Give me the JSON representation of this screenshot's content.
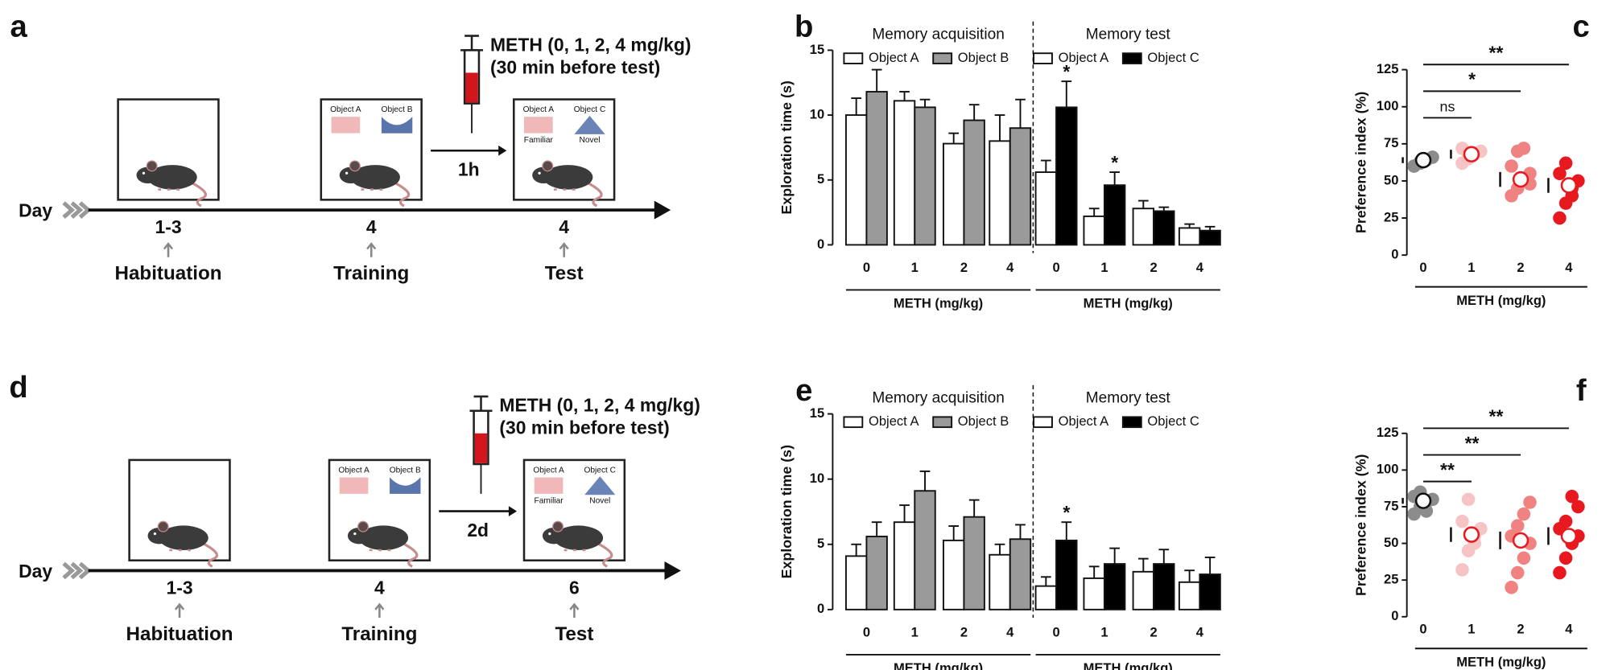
{
  "diagrams": [
    {
      "label": "a",
      "day_label": "Day",
      "days": [
        "1-3",
        "4",
        "4"
      ],
      "stages": [
        "Habituation",
        "Training",
        "Test"
      ],
      "injection": [
        "METH (0, 1, 2, 4 mg/kg)",
        "(30 min before test)"
      ],
      "interval": "1h",
      "training_objects": [
        "Object A",
        "Object B"
      ],
      "test_objects": [
        "Object A",
        "Object C"
      ],
      "test_notes": [
        "Familiar",
        "Novel"
      ]
    },
    {
      "label": "d",
      "day_label": "Day",
      "days": [
        "1-3",
        "4",
        "6"
      ],
      "stages": [
        "Habituation",
        "Training",
        "Test"
      ],
      "injection": [
        "METH (0, 1, 2, 4 mg/kg)",
        "(30 min before test)"
      ],
      "interval": "2d",
      "training_objects": [
        "Object A",
        "Object B"
      ],
      "test_objects": [
        "Object A",
        "Object C"
      ],
      "test_notes": [
        "Familiar",
        "Novel"
      ]
    }
  ],
  "chart_data": [
    {
      "type": "grouped_bar",
      "label": "b",
      "ylabel": "Exploration time (s)",
      "ylim": [
        0,
        15
      ],
      "yticks": [
        0,
        5,
        10,
        15
      ],
      "groups": [
        {
          "title": "Memory acquisition",
          "xlabel": "METH (mg/kg)",
          "categories": [
            "0",
            "1",
            "2",
            "4"
          ],
          "series": [
            {
              "name": "Object A",
              "color": "#ffffff",
              "values": [
                10,
                11.1,
                7.8,
                8
              ],
              "errors": [
                1.3,
                0.7,
                0.8,
                2
              ],
              "significance": [
                null,
                null,
                null,
                null
              ]
            },
            {
              "name": "Object B",
              "color": "#9a9a9a",
              "values": [
                11.8,
                10.6,
                9.6,
                9
              ],
              "errors": [
                1.7,
                0.6,
                1.2,
                2.2
              ],
              "significance": [
                null,
                null,
                null,
                null
              ]
            }
          ]
        },
        {
          "title": "Memory test",
          "xlabel": "METH (mg/kg)",
          "categories": [
            "0",
            "1",
            "2",
            "4"
          ],
          "series": [
            {
              "name": "Object A",
              "color": "#ffffff",
              "values": [
                5.6,
                2.2,
                2.8,
                1.3
              ],
              "errors": [
                0.9,
                0.6,
                0.6,
                0.3
              ],
              "significance": [
                null,
                null,
                null,
                null
              ]
            },
            {
              "name": "Object C",
              "color": "#000000",
              "values": [
                10.6,
                4.6,
                2.6,
                1.1
              ],
              "errors": [
                2,
                1,
                0.3,
                0.3
              ],
              "significance": [
                "*",
                "*",
                null,
                null
              ]
            }
          ]
        }
      ]
    },
    {
      "type": "dot_strip",
      "label": "c",
      "ylabel": "Preference index (%)",
      "xlabel": "METH (mg/kg)",
      "ylim": [
        0,
        125
      ],
      "yticks": [
        0,
        25,
        50,
        75,
        100,
        125
      ],
      "categories": [
        "0",
        "1",
        "2",
        "4"
      ],
      "colors": [
        "#8c8c8c",
        "#f6c4c4",
        "#f08282",
        "#e8191e"
      ],
      "points": [
        [
          60,
          62,
          64,
          66,
          60,
          63
        ],
        [
          62,
          65,
          68,
          70,
          72,
          67
        ],
        [
          40,
          45,
          50,
          55,
          60,
          70,
          72,
          48
        ],
        [
          25,
          35,
          45,
          50,
          55,
          62,
          40
        ]
      ],
      "means": [
        64,
        68,
        51,
        47
      ],
      "errors": [
        2,
        3,
        5,
        5
      ],
      "comparisons": [
        {
          "groups": [
            "0",
            "1"
          ],
          "label": "ns"
        },
        {
          "groups": [
            "0",
            "2"
          ],
          "label": "*"
        },
        {
          "groups": [
            "0",
            "4"
          ],
          "label": "**"
        }
      ]
    },
    {
      "type": "grouped_bar",
      "label": "e",
      "ylabel": "Exploration time (s)",
      "ylim": [
        0,
        15
      ],
      "yticks": [
        0,
        5,
        10,
        15
      ],
      "groups": [
        {
          "title": "Memory acquisition",
          "xlabel": "METH (mg/kg)",
          "categories": [
            "0",
            "1",
            "2",
            "4"
          ],
          "series": [
            {
              "name": "Object A",
              "color": "#ffffff",
              "values": [
                4.1,
                6.7,
                5.3,
                4.2
              ],
              "errors": [
                0.9,
                1.3,
                1.1,
                0.8
              ],
              "significance": [
                null,
                null,
                null,
                null
              ]
            },
            {
              "name": "Object B",
              "color": "#9a9a9a",
              "values": [
                5.6,
                9.1,
                7.1,
                5.4
              ],
              "errors": [
                1.1,
                1.5,
                1.3,
                1.1
              ],
              "significance": [
                null,
                null,
                null,
                null
              ]
            }
          ]
        },
        {
          "title": "Memory test",
          "xlabel": "METH (mg/kg)",
          "categories": [
            "0",
            "1",
            "2",
            "4"
          ],
          "series": [
            {
              "name": "Object A",
              "color": "#ffffff",
              "values": [
                1.8,
                2.4,
                2.9,
                2.1
              ],
              "errors": [
                0.7,
                0.9,
                1,
                0.9
              ],
              "significance": [
                null,
                null,
                null,
                null
              ]
            },
            {
              "name": "Object C",
              "color": "#000000",
              "values": [
                5.3,
                3.5,
                3.5,
                2.7
              ],
              "errors": [
                1.4,
                1.2,
                1.1,
                1.3
              ],
              "significance": [
                "*",
                null,
                null,
                null
              ]
            }
          ]
        }
      ]
    },
    {
      "type": "dot_strip",
      "label": "f",
      "ylabel": "Preference index (%)",
      "xlabel": "METH (mg/kg)",
      "ylim": [
        0,
        125
      ],
      "yticks": [
        0,
        25,
        50,
        75,
        100,
        125
      ],
      "categories": [
        "0",
        "1",
        "2",
        "4"
      ],
      "colors": [
        "#8c8c8c",
        "#f6c4c4",
        "#f08282",
        "#e8191e"
      ],
      "points": [
        [
          70,
          75,
          78,
          80,
          82,
          85,
          72
        ],
        [
          32,
          45,
          55,
          60,
          65,
          80,
          50
        ],
        [
          20,
          30,
          40,
          50,
          55,
          62,
          70,
          78
        ],
        [
          30,
          40,
          50,
          55,
          60,
          65,
          82,
          75
        ]
      ],
      "means": [
        79,
        56,
        52,
        55
      ],
      "errors": [
        2,
        5,
        6,
        6
      ],
      "comparisons": [
        {
          "groups": [
            "0",
            "1"
          ],
          "label": "**"
        },
        {
          "groups": [
            "0",
            "2"
          ],
          "label": "**"
        },
        {
          "groups": [
            "0",
            "4"
          ],
          "label": "**"
        }
      ]
    }
  ]
}
